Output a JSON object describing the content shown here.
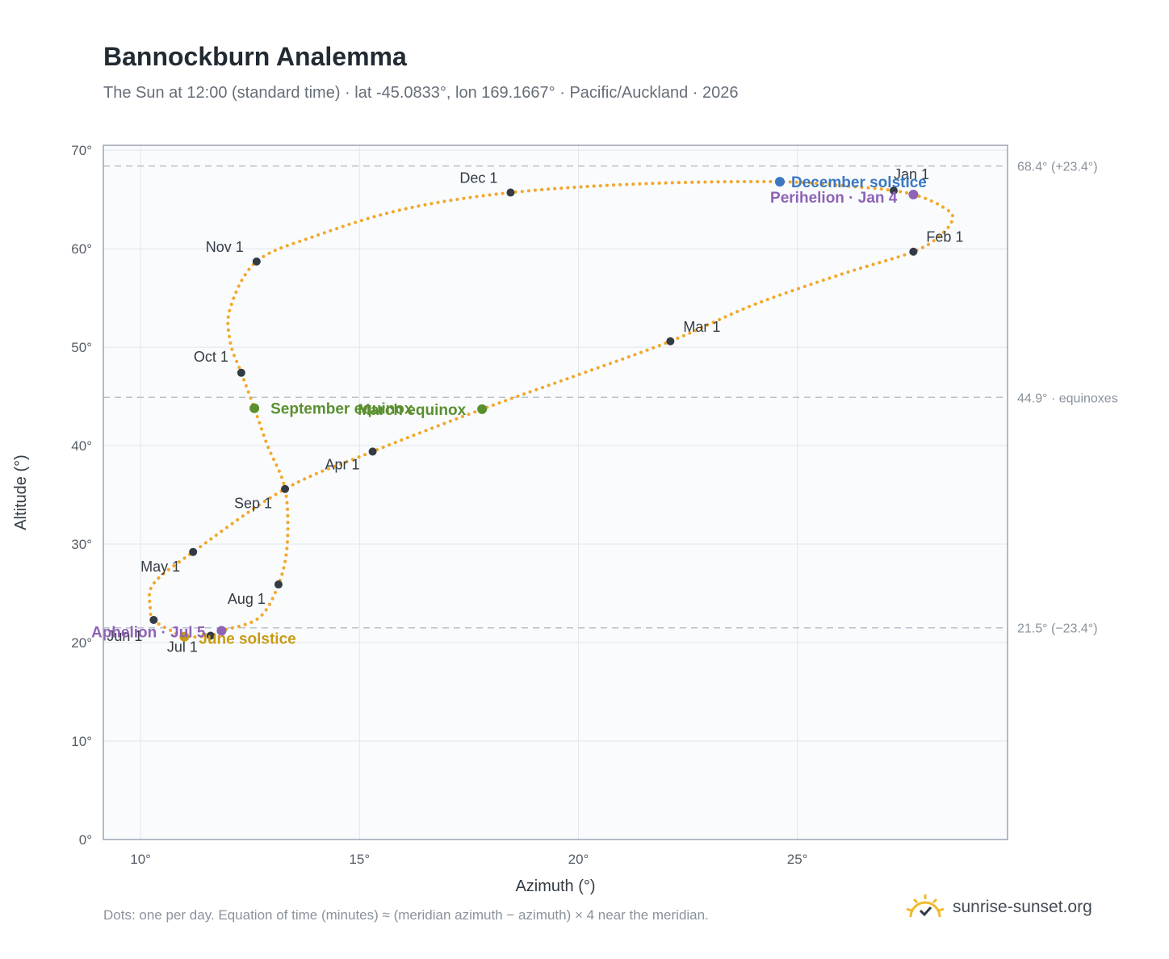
{
  "chart_data": {
    "type": "scatter",
    "title": "Bannockburn Analemma",
    "subtitle": "The Sun at 12:00 (standard time) · lat -45.0833°, lon 169.1667° · Pacific/Auckland · 2026",
    "xlabel": "Azimuth (°)",
    "ylabel": "Altitude (°)",
    "xlim": [
      9.15,
      29.8
    ],
    "ylim": [
      0,
      70.5
    ],
    "xticks": [
      10,
      15,
      20,
      25
    ],
    "xtick_labels": [
      "10°",
      "15°",
      "20°",
      "25°"
    ],
    "yticks": [
      0,
      10,
      20,
      30,
      40,
      50,
      60,
      70
    ],
    "ytick_labels": [
      "0°",
      "10°",
      "20°",
      "30°",
      "40°",
      "50°",
      "60°",
      "70°"
    ],
    "grid": true,
    "series": [
      {
        "path_points": [
          {
            "x": 27.2,
            "y": 65.9
          },
          {
            "x": 27.8,
            "y": 65.3
          },
          {
            "x": 28.3,
            "y": 64.3
          },
          {
            "x": 28.55,
            "y": 63.2
          },
          {
            "x": 28.3,
            "y": 61.5
          },
          {
            "x": 27.65,
            "y": 59.7
          },
          {
            "x": 26.0,
            "y": 57.4
          },
          {
            "x": 24.0,
            "y": 54.3
          },
          {
            "x": 22.1,
            "y": 50.6
          },
          {
            "x": 20.0,
            "y": 47.2
          },
          {
            "x": 17.8,
            "y": 43.7
          },
          {
            "x": 15.3,
            "y": 39.4
          },
          {
            "x": 13.3,
            "y": 35.6
          },
          {
            "x": 11.2,
            "y": 29.2
          },
          {
            "x": 10.3,
            "y": 26.0
          },
          {
            "x": 10.22,
            "y": 23.6
          },
          {
            "x": 10.3,
            "y": 22.3
          },
          {
            "x": 10.7,
            "y": 21.2
          },
          {
            "x": 11.0,
            "y": 20.6
          },
          {
            "x": 11.6,
            "y": 20.7
          },
          {
            "x": 11.85,
            "y": 21.2
          },
          {
            "x": 12.7,
            "y": 22.5
          },
          {
            "x": 13.15,
            "y": 25.9
          },
          {
            "x": 13.35,
            "y": 30.0
          },
          {
            "x": 13.3,
            "y": 35.6
          },
          {
            "x": 12.9,
            "y": 40.0
          },
          {
            "x": 12.6,
            "y": 43.8
          },
          {
            "x": 12.3,
            "y": 47.4
          },
          {
            "x": 12.05,
            "y": 50.5
          },
          {
            "x": 12.05,
            "y": 54.0
          },
          {
            "x": 12.65,
            "y": 58.7
          },
          {
            "x": 14.0,
            "y": 61.3
          },
          {
            "x": 16.0,
            "y": 64.0
          },
          {
            "x": 18.45,
            "y": 65.7
          },
          {
            "x": 21.5,
            "y": 66.6
          },
          {
            "x": 24.6,
            "y": 66.8
          },
          {
            "x": 26.3,
            "y": 66.3
          },
          {
            "x": 27.2,
            "y": 65.9
          }
        ]
      }
    ],
    "month_markers": [
      {
        "label": "Jan 1",
        "x": 27.2,
        "y": 65.9
      },
      {
        "label": "Feb 1",
        "x": 27.65,
        "y": 59.7
      },
      {
        "label": "Mar 1",
        "x": 22.1,
        "y": 50.6
      },
      {
        "label": "Apr 1",
        "x": 15.3,
        "y": 39.4
      },
      {
        "label": "May 1",
        "x": 11.2,
        "y": 29.2
      },
      {
        "label": "Jun 1",
        "x": 10.3,
        "y": 22.3
      },
      {
        "label": "Jul 1",
        "x": 11.6,
        "y": 20.7
      },
      {
        "label": "Aug 1",
        "x": 13.15,
        "y": 25.9
      },
      {
        "label": "Sep 1",
        "x": 13.3,
        "y": 35.6
      },
      {
        "label": "Oct 1",
        "x": 12.3,
        "y": 47.4
      },
      {
        "label": "Nov 1",
        "x": 12.65,
        "y": 58.7
      },
      {
        "label": "Dec 1",
        "x": 18.45,
        "y": 65.7
      }
    ],
    "events": [
      {
        "label": "December solstice",
        "x": 24.6,
        "y": 66.8,
        "color": "#3a78c2"
      },
      {
        "label": "Perihelion · Jan 4",
        "x": 27.65,
        "y": 65.5,
        "color": "#8e63b5"
      },
      {
        "label": "March equinox",
        "x": 17.8,
        "y": 43.7,
        "color": "#5a8f2e"
      },
      {
        "label": "September equinox",
        "x": 12.6,
        "y": 43.8,
        "color": "#5a8f2e"
      },
      {
        "label": "June solstice",
        "x": 11.0,
        "y": 20.6,
        "color": "#c99a12"
      },
      {
        "label": "Aphelion · Jul 5",
        "x": 11.85,
        "y": 21.2,
        "color": "#8e63b5"
      }
    ],
    "reference_lines": [
      {
        "y": 68.4,
        "label": "68.4° (+23.4°)"
      },
      {
        "y": 44.9,
        "label": "44.9° · equinoxes"
      },
      {
        "y": 21.5,
        "label": "21.5° (−23.4°)"
      }
    ],
    "colors": {
      "path": "#f2a72a",
      "marker": "#333b44",
      "grid": "#e2e7ec",
      "plot_bg": "#f9fbfd",
      "frame": "#9aa5b1",
      "ref_line": "#b7c2cc"
    }
  },
  "footnote": "Dots: one per day. Equation of time (minutes) ≈ (meridian azimuth − azimuth) × 4 near the meridian.",
  "brand": {
    "name": "sunrise-sunset.org",
    "icon": "sun-logo-icon"
  }
}
